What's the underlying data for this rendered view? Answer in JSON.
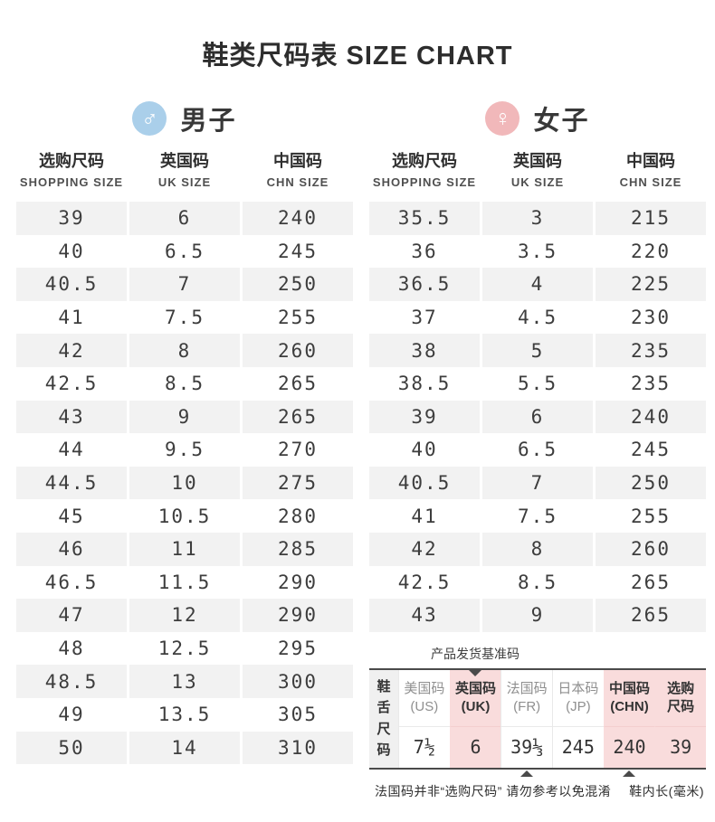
{
  "title": "鞋类尺码表 SIZE CHART",
  "colors": {
    "male_icon_blue": "#aacfea",
    "female_icon_pink": "#f1b8ba",
    "row_shade_gray": "#f2f2f2",
    "highlight_pink": "#f9dcdc",
    "rule_dark": "#4a4a4a"
  },
  "men": {
    "label": "男子",
    "icon": "male-icon",
    "columns": [
      {
        "zh": "选购尺码",
        "en": "SHOPPING SIZE"
      },
      {
        "zh": "英国码",
        "en": "UK SIZE"
      },
      {
        "zh": "中国码",
        "en": "CHN SIZE"
      }
    ],
    "rows": [
      [
        "39",
        "6",
        "240"
      ],
      [
        "40",
        "6.5",
        "245"
      ],
      [
        "40.5",
        "7",
        "250"
      ],
      [
        "41",
        "7.5",
        "255"
      ],
      [
        "42",
        "8",
        "260"
      ],
      [
        "42.5",
        "8.5",
        "265"
      ],
      [
        "43",
        "9",
        "265"
      ],
      [
        "44",
        "9.5",
        "270"
      ],
      [
        "44.5",
        "10",
        "275"
      ],
      [
        "45",
        "10.5",
        "280"
      ],
      [
        "46",
        "11",
        "285"
      ],
      [
        "46.5",
        "11.5",
        "290"
      ],
      [
        "47",
        "12",
        "290"
      ],
      [
        "48",
        "12.5",
        "295"
      ],
      [
        "48.5",
        "13",
        "300"
      ],
      [
        "49",
        "13.5",
        "305"
      ],
      [
        "50",
        "14",
        "310"
      ]
    ]
  },
  "women": {
    "label": "女子",
    "icon": "female-icon",
    "columns": [
      {
        "zh": "选购尺码",
        "en": "SHOPPING SIZE"
      },
      {
        "zh": "英国码",
        "en": "UK SIZE"
      },
      {
        "zh": "中国码",
        "en": "CHN SIZE"
      }
    ],
    "rows": [
      [
        "35.5",
        "3",
        "215"
      ],
      [
        "36",
        "3.5",
        "220"
      ],
      [
        "36.5",
        "4",
        "225"
      ],
      [
        "37",
        "4.5",
        "230"
      ],
      [
        "38",
        "5",
        "235"
      ],
      [
        "38.5",
        "5.5",
        "235"
      ],
      [
        "39",
        "6",
        "240"
      ],
      [
        "40",
        "6.5",
        "245"
      ],
      [
        "40.5",
        "7",
        "250"
      ],
      [
        "41",
        "7.5",
        "255"
      ],
      [
        "42",
        "8",
        "260"
      ],
      [
        "42.5",
        "8.5",
        "265"
      ],
      [
        "43",
        "9",
        "265"
      ]
    ]
  },
  "reference": {
    "label": "产品发货基准码",
    "row_header": "鞋舌尺码",
    "columns": [
      {
        "zh": "美国码",
        "sub": "(US)",
        "value": "7½"
      },
      {
        "zh": "英国码",
        "sub": "(UK)",
        "value": "6"
      },
      {
        "zh": "法国码",
        "sub": "(FR)",
        "value": "39⅓"
      },
      {
        "zh": "日本码",
        "sub": "(JP)",
        "value": "245"
      },
      {
        "zh": "中国码",
        "sub": "(CHN)",
        "value": "240"
      },
      {
        "zh": "选购",
        "sub": "尺码",
        "value": "39"
      }
    ],
    "notes": {
      "left": "法国码并非“选购尺码” 请勿参考以免混淆",
      "right": "鞋内长(毫米)"
    }
  }
}
